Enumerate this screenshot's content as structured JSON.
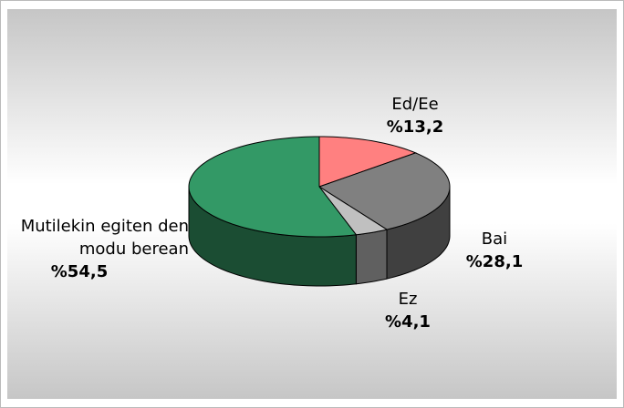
{
  "chart_data": {
    "type": "pie3d",
    "categories": [
      "Ed/Ee",
      "Bai",
      "Ez",
      "Mutilekin egiten den modu berean"
    ],
    "values": [
      13.2,
      28.1,
      4.1,
      54.5
    ],
    "value_labels": [
      "%13,2",
      "%28,1",
      "%4,1",
      "%54,5"
    ],
    "colors": [
      "#ff8080",
      "#808080",
      "#c0c0c0",
      "#339966"
    ],
    "side_colors": [
      "#b35a5a",
      "#404040",
      "#606060",
      "#1b4d33"
    ]
  }
}
